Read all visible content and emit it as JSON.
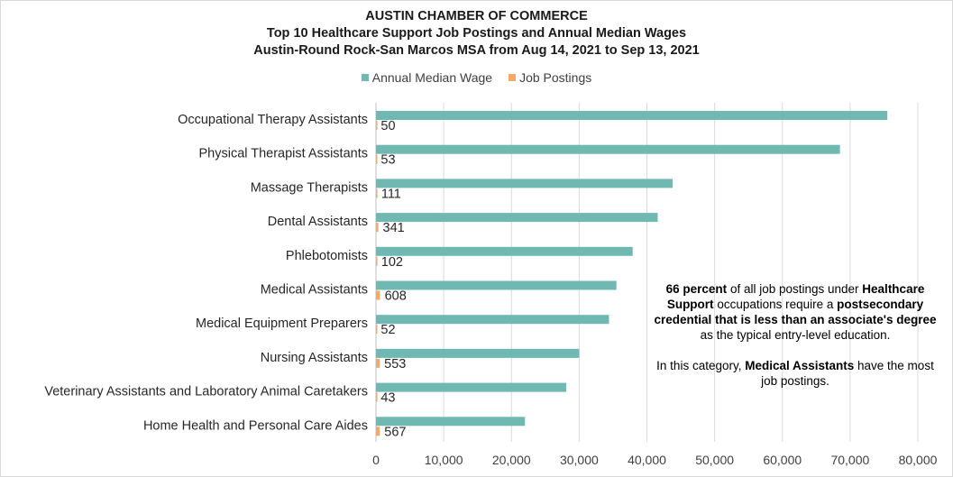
{
  "chart_data": {
    "type": "bar",
    "orientation": "horizontal",
    "title_lines": [
      "AUSTIN CHAMBER OF COMMERCE",
      "Top 10 Healthcare Support Job Postings and Annual Median Wages",
      "Austin-Round Rock-San Marcos MSA from Aug 14, 2021 to Sep 13, 2021"
    ],
    "categories": [
      "Occupational Therapy Assistants",
      "Physical Therapist Assistants",
      "Massage Therapists",
      "Dental Assistants",
      "Phlebotomists",
      "Medical Assistants",
      "Medical Equipment Preparers",
      "Nursing Assistants",
      "Veterinary Assistants and Laboratory Animal Caretakers",
      "Home Health and Personal Care Aides"
    ],
    "series": [
      {
        "name": "Annual Median Wage",
        "color": "#70b8b2",
        "values": [
          75500,
          68500,
          43800,
          41600,
          37900,
          35500,
          34400,
          30000,
          28100,
          22000
        ]
      },
      {
        "name": "Job Postings",
        "color": "#f2a96b",
        "values": [
          50,
          53,
          111,
          341,
          102,
          608,
          52,
          553,
          43,
          567
        ],
        "data_labels": [
          "50",
          "53",
          "111",
          "341",
          "102",
          "608",
          "52",
          "553",
          "43",
          "567"
        ]
      }
    ],
    "xlim": [
      0,
      80000
    ],
    "xticks": [
      0,
      10000,
      20000,
      30000,
      40000,
      50000,
      60000,
      70000,
      80000
    ],
    "xtick_labels": [
      "0",
      "10,000",
      "20,000",
      "30,000",
      "40,000",
      "50,000",
      "60,000",
      "70,000",
      "80,000"
    ],
    "grid": "vertical",
    "legend_position": "top-center"
  },
  "annotation": {
    "p1": [
      {
        "text": "66 percent",
        "bold": true
      },
      {
        "text": " of all job postings under ",
        "bold": false
      },
      {
        "text": "Healthcare Support",
        "bold": true
      },
      {
        "text": " occupations require a ",
        "bold": false
      },
      {
        "text": "postsecondary credential that is less than an associate's degree",
        "bold": true
      },
      {
        "text": " as the typical entry-level education.",
        "bold": false
      }
    ],
    "p2": [
      {
        "text": "In this category, ",
        "bold": false
      },
      {
        "text": "Medical Assistants",
        "bold": true
      },
      {
        "text": " have the most job postings.",
        "bold": false
      }
    ]
  }
}
